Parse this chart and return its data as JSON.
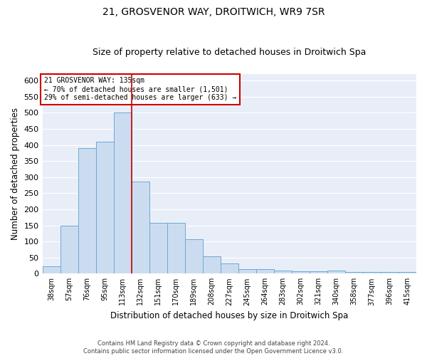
{
  "title1": "21, GROSVENOR WAY, DROITWICH, WR9 7SR",
  "title2": "Size of property relative to detached houses in Droitwich Spa",
  "xlabel": "Distribution of detached houses by size in Droitwich Spa",
  "ylabel": "Number of detached properties",
  "footnote1": "Contains HM Land Registry data © Crown copyright and database right 2024.",
  "footnote2": "Contains public sector information licensed under the Open Government Licence v3.0.",
  "annotation_line1": "21 GROSVENOR WAY: 135sqm",
  "annotation_line2": "← 70% of detached houses are smaller (1,501)",
  "annotation_line3": "29% of semi-detached houses are larger (633) →",
  "bar_categories": [
    "38sqm",
    "57sqm",
    "76sqm",
    "95sqm",
    "113sqm",
    "132sqm",
    "151sqm",
    "170sqm",
    "189sqm",
    "208sqm",
    "227sqm",
    "245sqm",
    "264sqm",
    "283sqm",
    "302sqm",
    "321sqm",
    "340sqm",
    "358sqm",
    "377sqm",
    "396sqm",
    "415sqm"
  ],
  "bar_values": [
    23,
    149,
    390,
    410,
    500,
    286,
    158,
    158,
    107,
    53,
    31,
    15,
    15,
    10,
    8,
    8,
    10,
    5,
    5,
    5,
    5
  ],
  "bar_color": "#ccdcf0",
  "bar_edge_color": "#6aaad4",
  "vline_x": 4.5,
  "vline_color": "#cc0000",
  "annotation_box_color": "#cc0000",
  "ylim": [
    0,
    620
  ],
  "yticks": [
    0,
    50,
    100,
    150,
    200,
    250,
    300,
    350,
    400,
    450,
    500,
    550,
    600
  ],
  "bg_color": "#e8eef8",
  "grid_color": "#ffffff",
  "title1_fontsize": 10,
  "title2_fontsize": 9,
  "xlabel_fontsize": 8.5,
  "ylabel_fontsize": 8.5
}
